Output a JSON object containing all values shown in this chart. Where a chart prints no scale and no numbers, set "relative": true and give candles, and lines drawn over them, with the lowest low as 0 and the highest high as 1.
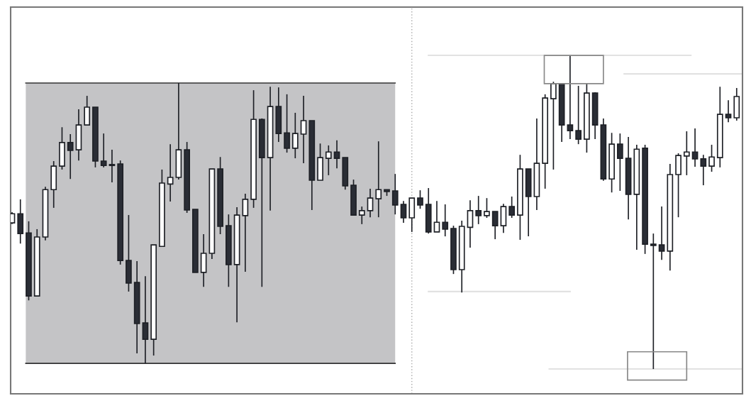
{
  "chart_data": {
    "type": "candlestick",
    "relative": true,
    "bands": [
      {
        "axis": "y",
        "from": 0.018,
        "to": 0.912,
        "color": "#c4c4c6"
      }
    ],
    "ref_lines": [
      {
        "axis": "y",
        "value": 0.912,
        "color": "#333333"
      },
      {
        "axis": "y",
        "value": 0.018,
        "color": "#333333"
      },
      {
        "axis": "y",
        "value": 1.0,
        "color": "#e2e2e2"
      },
      {
        "axis": "y",
        "value": 0.941,
        "color": "#e2e2e2"
      },
      {
        "axis": "y",
        "value": 0.247,
        "color": "#e2e2e2"
      },
      {
        "axis": "y",
        "value": 0.0,
        "color": "#e2e2e2"
      }
    ],
    "categories": [
      null,
      null,
      null,
      null,
      null,
      null,
      null,
      null,
      null,
      null,
      null,
      null,
      null,
      null,
      null,
      null,
      null,
      null,
      null,
      null,
      null,
      null,
      null,
      null,
      null,
      null,
      null,
      null,
      null,
      null,
      null,
      null,
      null,
      null,
      null,
      null,
      null,
      null,
      null,
      null,
      null,
      null,
      null,
      null,
      null,
      null,
      null,
      null,
      null,
      null,
      null,
      null,
      null,
      null,
      null,
      null,
      null,
      null,
      null,
      null,
      null,
      null,
      null,
      null,
      null,
      null,
      null,
      null,
      null,
      null,
      null,
      null,
      null,
      null,
      null,
      null,
      null,
      null,
      null,
      null,
      null,
      null,
      null,
      null,
      null,
      null,
      null,
      null
    ],
    "ohlc": [
      [
        0.466,
        0.5,
        0.462,
        0.495
      ],
      [
        0.495,
        0.541,
        0.4,
        0.432
      ],
      [
        0.434,
        0.471,
        0.219,
        0.233
      ],
      [
        0.233,
        0.446,
        0.233,
        0.421
      ],
      [
        0.421,
        0.581,
        0.41,
        0.572
      ],
      [
        0.572,
        0.663,
        0.514,
        0.647
      ],
      [
        0.647,
        0.771,
        0.636,
        0.722
      ],
      [
        0.722,
        0.749,
        0.606,
        0.697
      ],
      [
        0.699,
        0.828,
        0.665,
        0.778
      ],
      [
        0.778,
        0.871,
        0.778,
        0.835
      ],
      [
        0.835,
        0.835,
        0.643,
        0.663
      ],
      [
        0.663,
        0.751,
        0.643,
        0.649
      ],
      [
        0.652,
        0.699,
        0.595,
        0.649
      ],
      [
        0.654,
        0.665,
        0.333,
        0.346
      ],
      [
        0.346,
        0.491,
        0.247,
        0.274
      ],
      [
        0.276,
        0.344,
        0.05,
        0.145
      ],
      [
        0.147,
        0.296,
        0.018,
        0.095
      ],
      [
        0.095,
        0.396,
        0.043,
        0.396
      ],
      [
        0.391,
        0.636,
        0.391,
        0.593
      ],
      [
        0.59,
        0.717,
        0.534,
        0.611
      ],
      [
        0.611,
        0.912,
        0.604,
        0.699
      ],
      [
        0.699,
        0.724,
        0.498,
        0.507
      ],
      [
        0.509,
        0.509,
        0.308,
        0.308
      ],
      [
        0.308,
        0.43,
        0.262,
        0.369
      ],
      [
        0.369,
        0.638,
        0.351,
        0.638
      ],
      [
        0.638,
        0.676,
        0.43,
        0.455
      ],
      [
        0.457,
        0.493,
        0.262,
        0.333
      ],
      [
        0.333,
        0.516,
        0.149,
        0.491
      ],
      [
        0.489,
        0.559,
        0.31,
        0.541
      ],
      [
        0.541,
        0.889,
        0.514,
        0.796
      ],
      [
        0.796,
        0.799,
        0.262,
        0.674
      ],
      [
        0.674,
        0.9,
        0.505,
        0.837
      ],
      [
        0.837,
        0.898,
        0.724,
        0.751
      ],
      [
        0.753,
        0.876,
        0.69,
        0.704
      ],
      [
        0.704,
        0.817,
        0.672,
        0.751
      ],
      [
        0.749,
        0.871,
        0.656,
        0.792
      ],
      [
        0.792,
        0.792,
        0.507,
        0.602
      ],
      [
        0.602,
        0.719,
        0.602,
        0.674
      ],
      [
        0.672,
        0.713,
        0.618,
        0.692
      ],
      [
        0.692,
        0.729,
        0.64,
        0.672
      ],
      [
        0.674,
        0.674,
        0.572,
        0.584
      ],
      [
        0.586,
        0.604,
        0.491,
        0.491
      ],
      [
        0.491,
        0.518,
        0.462,
        0.505
      ],
      [
        0.505,
        0.575,
        0.484,
        0.545
      ],
      [
        0.543,
        0.726,
        0.484,
        0.572
      ],
      [
        0.572,
        0.572,
        0.552,
        0.566
      ],
      [
        0.568,
        0.622,
        0.493,
        0.523
      ],
      [
        0.525,
        0.536,
        0.466,
        0.482
      ],
      [
        0.482,
        0.545,
        0.437,
        0.545
      ],
      [
        0.545,
        0.57,
        0.511,
        0.523
      ],
      [
        0.525,
        0.577,
        0.432,
        0.437
      ],
      [
        0.437,
        0.536,
        0.437,
        0.468
      ],
      [
        0.468,
        0.525,
        0.423,
        0.446
      ],
      [
        0.448,
        0.457,
        0.303,
        0.317
      ],
      [
        0.317,
        0.473,
        0.244,
        0.455
      ],
      [
        0.452,
        0.538,
        0.387,
        0.505
      ],
      [
        0.505,
        0.552,
        0.462,
        0.489
      ],
      [
        0.489,
        0.545,
        0.482,
        0.502
      ],
      [
        0.502,
        0.502,
        0.414,
        0.457
      ],
      [
        0.457,
        0.527,
        0.434,
        0.518
      ],
      [
        0.518,
        0.55,
        0.482,
        0.491
      ],
      [
        0.491,
        0.683,
        0.412,
        0.638
      ],
      [
        0.638,
        0.638,
        0.423,
        0.55
      ],
      [
        0.55,
        0.799,
        0.507,
        0.656
      ],
      [
        0.656,
        0.876,
        0.575,
        0.864
      ],
      [
        0.862,
        0.916,
        0.636,
        0.91
      ],
      [
        0.91,
        0.91,
        0.724,
        0.778
      ],
      [
        0.778,
        1.0,
        0.733,
        0.76
      ],
      [
        0.76,
        0.903,
        0.717,
        0.733
      ],
      [
        0.733,
        0.91,
        0.69,
        0.88
      ],
      [
        0.88,
        0.882,
        0.733,
        0.778
      ],
      [
        0.778,
        0.799,
        0.6,
        0.606
      ],
      [
        0.606,
        0.753,
        0.563,
        0.717
      ],
      [
        0.717,
        0.751,
        0.568,
        0.672
      ],
      [
        0.672,
        0.74,
        0.477,
        0.557
      ],
      [
        0.557,
        0.715,
        0.38,
        0.701
      ],
      [
        0.704,
        0.715,
        0.367,
        0.398
      ],
      [
        0.398,
        0.432,
        0.0,
        0.394
      ],
      [
        0.396,
        0.518,
        0.348,
        0.376
      ],
      [
        0.376,
        0.654,
        0.314,
        0.62
      ],
      [
        0.62,
        0.688,
        0.484,
        0.681
      ],
      [
        0.679,
        0.758,
        0.618,
        0.692
      ],
      [
        0.692,
        0.767,
        0.645,
        0.67
      ],
      [
        0.67,
        0.683,
        0.586,
        0.647
      ],
      [
        0.647,
        0.715,
        0.629,
        0.676
      ],
      [
        0.674,
        0.9,
        0.643,
        0.812
      ],
      [
        0.812,
        0.857,
        0.787,
        0.801
      ],
      [
        0.801,
        0.896,
        0.792,
        0.869
      ]
    ]
  }
}
